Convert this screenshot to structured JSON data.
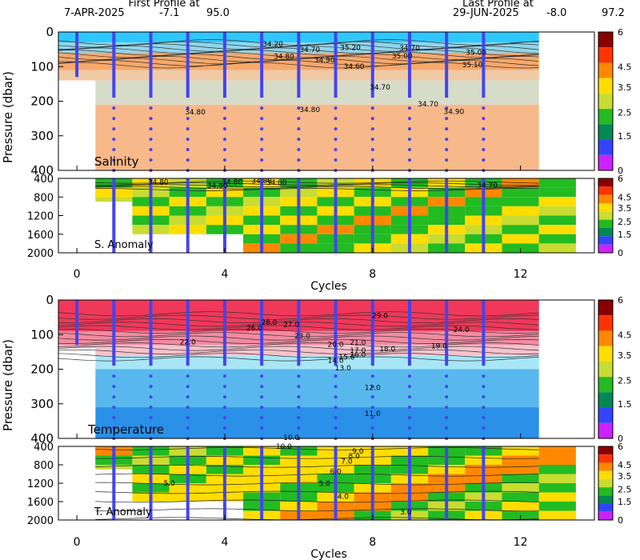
{
  "header": {
    "first_line1": "First Profile at",
    "first_line2": "7-APR-2025",
    "first_lat": "-7.1",
    "first_lon": "95.0",
    "last_line1": "Last Profile at",
    "last_line2": "29-JUN-2025",
    "last_lat": "-8.0",
    "last_lon": "97.2"
  },
  "chart_data": [
    {
      "type": "heatmap",
      "panel": "salinity",
      "label": "Salinity",
      "ylabel": "Pressure (dbar)",
      "xlim": [
        -0.5,
        14
      ],
      "ylim": [
        0,
        400
      ],
      "yticks": [
        0,
        100,
        200,
        300,
        400
      ],
      "colorbar_ticks": [
        "6",
        "4.5",
        "3.5",
        "2.5",
        "1.5",
        "0"
      ],
      "contour_labels": [
        {
          "text": "34.20",
          "x": 5.3,
          "y": 42
        },
        {
          "text": "34.70",
          "x": 6.3,
          "y": 58
        },
        {
          "text": "34.80",
          "x": 5.6,
          "y": 78
        },
        {
          "text": "34.90",
          "x": 6.7,
          "y": 88
        },
        {
          "text": "35.20",
          "x": 7.4,
          "y": 52
        },
        {
          "text": "34.60",
          "x": 7.5,
          "y": 106
        },
        {
          "text": "34.70",
          "x": 8.2,
          "y": 166
        },
        {
          "text": "34.80",
          "x": 3.2,
          "y": 238
        },
        {
          "text": "34.80",
          "x": 6.3,
          "y": 231
        },
        {
          "text": "35.00",
          "x": 8.8,
          "y": 76
        },
        {
          "text": "34.70",
          "x": 9.0,
          "y": 53
        },
        {
          "text": "35.00",
          "x": 10.8,
          "y": 66
        },
        {
          "text": "35.10",
          "x": 10.7,
          "y": 102
        },
        {
          "text": "34.70",
          "x": 9.5,
          "y": 215
        },
        {
          "text": "34.90",
          "x": 10.2,
          "y": 237
        }
      ]
    },
    {
      "type": "heatmap",
      "panel": "salinity_anomaly",
      "label": "S. Anomaly",
      "xlim": [
        -0.5,
        14
      ],
      "ylim": [
        400,
        2000
      ],
      "yticks": [
        400,
        800,
        1200,
        1600,
        2000
      ],
      "colorbar_ticks": [
        "6",
        "4.5",
        "3.5",
        "2.5",
        "1.5",
        "0"
      ],
      "contour_labels": [
        {
          "text": "34.80",
          "x": 2.2,
          "y": 525
        },
        {
          "text": "34.80",
          "x": 3.8,
          "y": 610
        },
        {
          "text": "34.80",
          "x": 5.0,
          "y": 505
        },
        {
          "text": "34.80",
          "x": 5.4,
          "y": 540
        },
        {
          "text": "34.80",
          "x": 4.2,
          "y": 525
        },
        {
          "text": "34.70",
          "x": 11.1,
          "y": 600
        }
      ]
    },
    {
      "type": "heatmap",
      "panel": "temperature",
      "label": "Temperature",
      "ylabel": "Pressure (dbar)",
      "xlim": [
        -0.5,
        14
      ],
      "ylim": [
        0,
        400
      ],
      "yticks": [
        0,
        100,
        200,
        300,
        400
      ],
      "colorbar_ticks": [
        "6",
        "4.5",
        "3.5",
        "2.5",
        "1.5",
        "0"
      ],
      "contour_labels": [
        {
          "text": "29.0",
          "x": 8.2,
          "y": 52
        },
        {
          "text": "28.0",
          "x": 5.2,
          "y": 72
        },
        {
          "text": "27.0",
          "x": 5.8,
          "y": 78
        },
        {
          "text": "26.0",
          "x": 4.8,
          "y": 88
        },
        {
          "text": "24.0",
          "x": 10.4,
          "y": 93
        },
        {
          "text": "23.0",
          "x": 6.1,
          "y": 111
        },
        {
          "text": "22.0",
          "x": 3.0,
          "y": 128
        },
        {
          "text": "20.0",
          "x": 7.0,
          "y": 135
        },
        {
          "text": "21.0",
          "x": 7.6,
          "y": 129
        },
        {
          "text": "19.0",
          "x": 9.8,
          "y": 140
        },
        {
          "text": "18.0",
          "x": 8.4,
          "y": 148
        },
        {
          "text": "17.0",
          "x": 7.6,
          "y": 153
        },
        {
          "text": "16.0",
          "x": 7.6,
          "y": 165
        },
        {
          "text": "15.0",
          "x": 7.3,
          "y": 172
        },
        {
          "text": "14.0",
          "x": 7.0,
          "y": 182
        },
        {
          "text": "13.0",
          "x": 7.2,
          "y": 204
        },
        {
          "text": "12.0",
          "x": 8.0,
          "y": 260
        },
        {
          "text": "11.0",
          "x": 8.0,
          "y": 335
        },
        {
          "text": "10.0",
          "x": 5.8,
          "y": 405
        }
      ]
    },
    {
      "type": "heatmap",
      "panel": "temperature_anomaly",
      "label": "T. Anomaly",
      "xlabel": "Cycles",
      "xlim": [
        -0.5,
        14
      ],
      "ylim": [
        400,
        2000
      ],
      "yticks": [
        400,
        800,
        1200,
        1600,
        2000
      ],
      "xticks": [
        0,
        4,
        8,
        12
      ],
      "colorbar_ticks": [
        "6",
        "4.5",
        "3.5",
        "2.5",
        "1.5",
        "0"
      ],
      "contour_labels": [
        {
          "text": "10.0",
          "x": 5.6,
          "y": 450
        },
        {
          "text": "9.0",
          "x": 7.6,
          "y": 560
        },
        {
          "text": "8.0",
          "x": 7.5,
          "y": 660
        },
        {
          "text": "7.0",
          "x": 7.3,
          "y": 770
        },
        {
          "text": "6.0",
          "x": 7.0,
          "y": 1000
        },
        {
          "text": "5.0",
          "x": 6.7,
          "y": 1260
        },
        {
          "text": "5.0",
          "x": 2.5,
          "y": 1250
        },
        {
          "text": "4.0",
          "x": 7.2,
          "y": 1540
        },
        {
          "text": "3.0",
          "x": 8.9,
          "y": 1880
        }
      ]
    }
  ],
  "profiles": {
    "cycles": [
      0,
      1,
      2,
      3,
      4,
      5,
      6,
      7,
      8,
      9,
      10,
      11
    ],
    "max_depth": [
      130,
      2000,
      2000,
      2000,
      2000,
      2000,
      2000,
      2000,
      2000,
      2000,
      2000,
      2000
    ],
    "start_cycle_anomaly_deep": 4.5
  },
  "colors": {
    "profile_line": "#4444ee",
    "frame": "#000000"
  }
}
